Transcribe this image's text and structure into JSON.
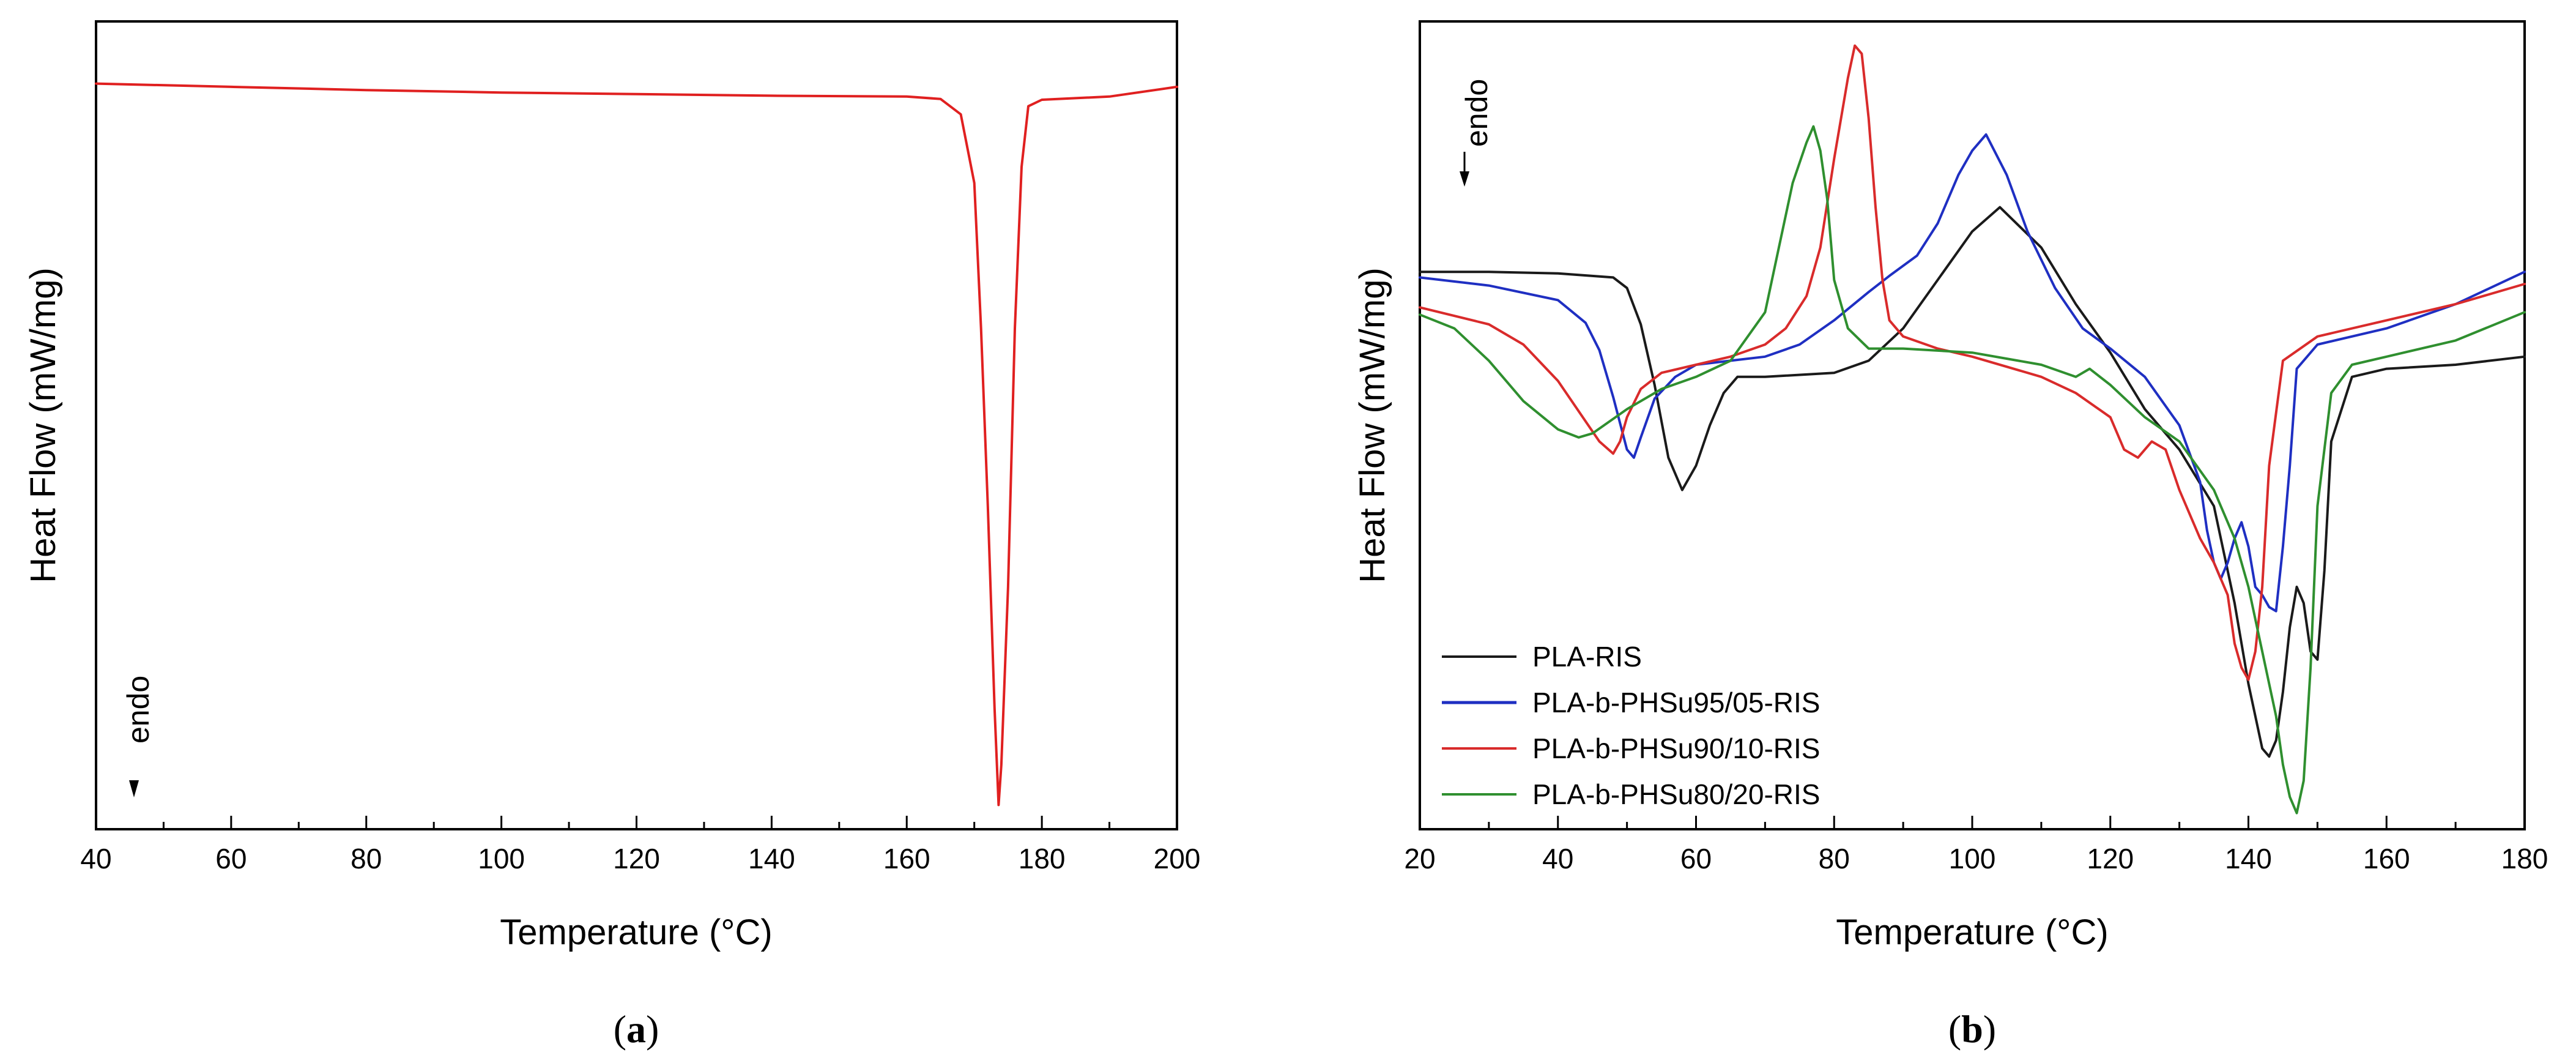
{
  "chart_data": [
    {
      "panel": "(a)",
      "type": "line",
      "xlabel": "Temperature (°C)",
      "ylabel": "Heat Flow (mW/mg)",
      "xlim": [
        40,
        200
      ],
      "xticks": [
        40,
        60,
        80,
        100,
        120,
        140,
        160,
        180,
        200
      ],
      "ylim": [
        0,
        100
      ],
      "annotation": "endo",
      "series": [
        {
          "name": "PLA-RIS",
          "color": "#e02020",
          "x": [
            40,
            60,
            80,
            100,
            120,
            140,
            160,
            165,
            168,
            170,
            171,
            172,
            173,
            173.6,
            174,
            175,
            176,
            177,
            178,
            180,
            190,
            200
          ],
          "y": [
            92.3,
            91.9,
            91.5,
            91.2,
            91.0,
            90.8,
            90.7,
            90.4,
            88.5,
            80,
            62,
            40,
            15,
            3,
            8,
            30,
            62,
            82,
            89.5,
            90.3,
            90.7,
            91.9
          ]
        }
      ]
    },
    {
      "panel": "(b)",
      "type": "line",
      "xlabel": "Temperature (°C)",
      "ylabel": "Heat Flow (mW/mg)",
      "xlim": [
        20,
        180
      ],
      "xticks": [
        20,
        40,
        60,
        80,
        100,
        120,
        140,
        160,
        180
      ],
      "ylim": [
        0,
        100
      ],
      "annotation": "endo",
      "legend_position": "bottom-left",
      "series": [
        {
          "name": "PLA-RIS",
          "color": "#1a1a1a",
          "x": [
            20,
            30,
            40,
            48,
            50,
            52,
            54,
            56,
            58,
            60,
            62,
            64,
            66,
            70,
            80,
            85,
            90,
            95,
            100,
            104,
            110,
            115,
            120,
            125,
            130,
            135,
            138,
            140,
            142,
            143,
            144,
            145,
            146,
            147,
            148,
            149,
            150,
            151,
            152,
            155,
            160,
            170,
            180
          ],
          "y": [
            69,
            69,
            68.8,
            68.3,
            67,
            62.5,
            55,
            46,
            42,
            45,
            50,
            54,
            56,
            56,
            56.5,
            58,
            62,
            68,
            74,
            77,
            72,
            65,
            59,
            52,
            47,
            40,
            28,
            18,
            10,
            9,
            11,
            17,
            25,
            30,
            28,
            22,
            21,
            32,
            48,
            56,
            57,
            57.5,
            58.5
          ]
        },
        {
          "name": "PLA-b-PHSu95/05-RIS",
          "color": "#1f2fc2",
          "x": [
            20,
            30,
            40,
            44,
            46,
            48,
            50,
            51,
            52,
            54,
            57,
            60,
            65,
            70,
            75,
            80,
            85,
            88,
            92,
            95,
            98,
            100,
            102,
            105,
            108,
            112,
            116,
            120,
            125,
            130,
            133,
            134,
            135,
            136,
            137,
            138,
            139,
            140,
            141,
            142,
            143,
            144,
            145,
            146,
            147,
            150,
            160,
            170,
            180
          ],
          "y": [
            68.3,
            67.3,
            65.5,
            62.7,
            59.3,
            53.5,
            47,
            46,
            48.5,
            53.3,
            56,
            57.5,
            58,
            58.5,
            60,
            63,
            66.5,
            68.5,
            71,
            75,
            81,
            84,
            86,
            81,
            74,
            67,
            62,
            59.5,
            56,
            50,
            43,
            37,
            33,
            31,
            33,
            36,
            38,
            35,
            30,
            29,
            27.5,
            27,
            35,
            45,
            57,
            60,
            62,
            65,
            69
          ]
        },
        {
          "name": "PLA-b-PHSu90/10-RIS",
          "color": "#d92b2b",
          "x": [
            20,
            30,
            35,
            40,
            44,
            46,
            48,
            49,
            50,
            52,
            55,
            60,
            65,
            70,
            73,
            76,
            78,
            80,
            82,
            83,
            84,
            85,
            86,
            87,
            88,
            90,
            95,
            100,
            110,
            115,
            120,
            122,
            124,
            126,
            128,
            130,
            133,
            135,
            137,
            138,
            139,
            140,
            141,
            142,
            143,
            145,
            150,
            160,
            170,
            180
          ],
          "y": [
            64.6,
            62.5,
            60,
            55.5,
            50.5,
            48,
            46.5,
            48,
            51,
            54.5,
            56.5,
            57.5,
            58.5,
            60,
            62,
            66,
            72,
            83,
            93,
            97,
            96,
            88,
            77,
            68,
            63,
            61,
            59.5,
            58.5,
            56,
            54,
            51,
            47,
            46,
            48,
            47,
            42,
            36,
            33,
            29,
            23,
            20,
            18.5,
            22,
            30,
            45,
            58,
            61,
            63,
            65,
            67.5
          ]
        },
        {
          "name": "PLA-b-PHSu80/20-RIS",
          "color": "#2f8f2f",
          "x": [
            20,
            25,
            30,
            35,
            40,
            43,
            45,
            50,
            55,
            60,
            65,
            70,
            72,
            74,
            76,
            77,
            78,
            79,
            80,
            82,
            85,
            90,
            100,
            110,
            115,
            117,
            120,
            125,
            130,
            135,
            138,
            140,
            142,
            144,
            145,
            146,
            147,
            148,
            149,
            150,
            152,
            155,
            160,
            170,
            180
          ],
          "y": [
            63.7,
            62,
            58,
            53,
            49.5,
            48.5,
            49,
            52,
            54.5,
            56,
            58,
            64,
            72,
            80,
            85,
            87,
            84,
            78,
            68,
            62,
            59.5,
            59.5,
            59,
            57.5,
            56,
            57,
            55,
            51,
            48,
            42,
            36,
            30,
            22,
            14,
            8,
            4,
            2,
            6,
            20,
            40,
            54,
            57.5,
            58.5,
            60.5,
            64
          ]
        }
      ]
    }
  ],
  "panel_a": {
    "ylabel": "Heat Flow (mW/mg)",
    "xlabel": "Temperature (°C)",
    "endo": "endo",
    "caption_open": "(",
    "caption_letter": "a",
    "caption_close": ")"
  },
  "panel_b": {
    "ylabel": "Heat Flow (mW/mg)",
    "xlabel": "Temperature (°C)",
    "endo": "endo",
    "caption_open": "(",
    "caption_letter": "b",
    "caption_close": ")",
    "legend": [
      "PLA-RIS",
      "PLA-b-PHSu95/05-RIS",
      "PLA-b-PHSu90/10-RIS",
      "PLA-b-PHSu80/20-RIS"
    ]
  }
}
